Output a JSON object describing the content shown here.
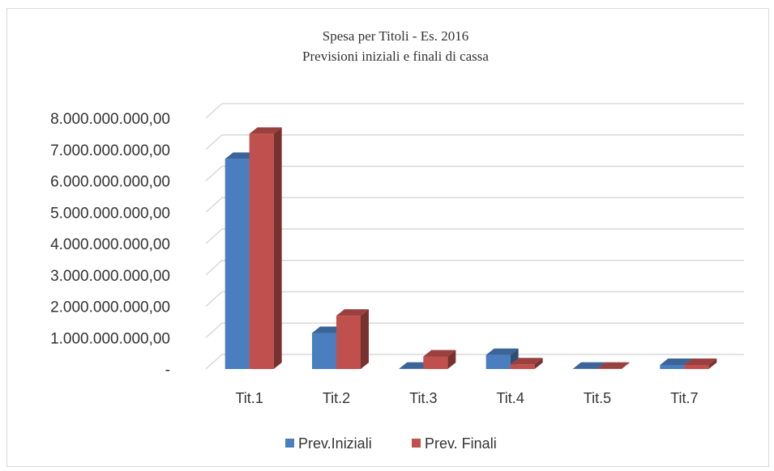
{
  "chart_data": {
    "type": "bar3d",
    "title": "Spesa per Titoli - Es. 2016",
    "subtitle": "Previsioni iniziali e finali di cassa",
    "categories": [
      "Tit.1",
      "Tit.2",
      "Tit.3",
      "Tit.4",
      "Tit.5",
      "Tit.7"
    ],
    "series": [
      {
        "name": "Prev.Iniziali",
        "color": "#4a7ebf",
        "values": [
          6700000000,
          1150000000,
          10000000,
          450000000,
          10000000,
          130000000
        ]
      },
      {
        "name": "Prev. Finali",
        "color": "#c0504d",
        "values": [
          7500000000,
          1700000000,
          400000000,
          150000000,
          10000000,
          130000000
        ]
      }
    ],
    "ylim": [
      0,
      8000000000
    ],
    "yticks": [
      {
        "value": 0,
        "label": "-"
      },
      {
        "value": 1000000000,
        "label": "1.000.000.000,00"
      },
      {
        "value": 2000000000,
        "label": "2.000.000.000,00"
      },
      {
        "value": 3000000000,
        "label": "3.000.000.000,00"
      },
      {
        "value": 4000000000,
        "label": "4.000.000.000,00"
      },
      {
        "value": 5000000000,
        "label": "5.000.000.000,00"
      },
      {
        "value": 6000000000,
        "label": "6.000.000.000,00"
      },
      {
        "value": 7000000000,
        "label": "7.000.000.000,00"
      },
      {
        "value": 8000000000,
        "label": "8.000.000.000,00"
      }
    ],
    "grid": true,
    "legend": "bottom"
  }
}
